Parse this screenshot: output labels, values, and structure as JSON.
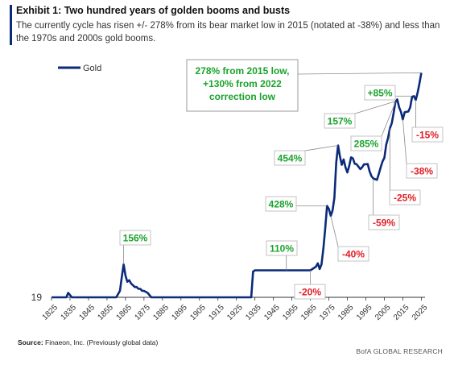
{
  "header": {
    "title": "Exhibit 1: Two hundred years of golden booms and busts",
    "subtitle": "The currently cycle has risen +/- 278% from its bear market low in 2015 (notated at -38%) and less than the 1970s and 2000s gold booms."
  },
  "footer": {
    "source_label": "Source:",
    "source_text": "Finaeon, Inc. (Previously global data)",
    "credit": "BofA GLOBAL RESEARCH"
  },
  "colors": {
    "line": "#0b2a7a",
    "gain": "#1aa32c",
    "loss": "#e11d25",
    "box_border": "#9a9a9a",
    "axis": "#333333"
  },
  "chart_data": {
    "type": "line",
    "series": [
      {
        "name": "Gold",
        "x": [
          1825,
          1833,
          1834,
          1835,
          1836,
          1860,
          1862,
          1863,
          1864,
          1865,
          1866,
          1867,
          1868,
          1869,
          1870,
          1871,
          1872,
          1873,
          1874,
          1875,
          1877,
          1879,
          1933,
          1934,
          1935,
          1940,
          1945,
          1948,
          1950,
          1952,
          1955,
          1960,
          1965,
          1968,
          1969,
          1970,
          1971,
          1972,
          1973,
          1974,
          1975,
          1976,
          1977,
          1978,
          1979,
          1980,
          1981,
          1982,
          1983,
          1984,
          1985,
          1986,
          1987,
          1988,
          1989,
          1990,
          1991,
          1992,
          1993,
          1994,
          1995,
          1996,
          1997,
          1998,
          1999,
          2000,
          2001,
          2002,
          2003,
          2004,
          2005,
          2006,
          2007,
          2008,
          2009,
          2010,
          2011,
          2012,
          2013,
          2014,
          2015,
          2016,
          2017,
          2018,
          2019,
          2020,
          2021,
          2022,
          2023,
          2024,
          2025
        ],
        "values": [
          19,
          19,
          21,
          20,
          19,
          19,
          22,
          30,
          40,
          31,
          27,
          28,
          26,
          25,
          24,
          24,
          23,
          23,
          22,
          22,
          21,
          19,
          19,
          34,
          35,
          35,
          35,
          35,
          35,
          35,
          35,
          35,
          35,
          38,
          41,
          36,
          40,
          57,
          90,
          150,
          140,
          120,
          135,
          180,
          400,
          590,
          460,
          380,
          430,
          360,
          320,
          370,
          450,
          440,
          390,
          385,
          365,
          345,
          360,
          385,
          385,
          388,
          330,
          295,
          280,
          275,
          271,
          310,
          360,
          410,
          445,
          600,
          700,
          870,
          975,
          1230,
          1570,
          1670,
          1400,
          1260,
          1060,
          1250,
          1260,
          1270,
          1400,
          1770,
          1800,
          1650,
          1950,
          2400,
          3050
        ]
      }
    ],
    "ytick": "19",
    "xticks": [
      "1825",
      "1835",
      "1845",
      "1855",
      "1865",
      "1875",
      "1885",
      "1895",
      "1905",
      "1915",
      "1925",
      "1935",
      "1945",
      "1955",
      "1965",
      "1975",
      "1985",
      "1995",
      "2005",
      "2015",
      "2025"
    ],
    "xlim": [
      1825,
      2027
    ],
    "ylim_log": [
      19,
      3300
    ],
    "legend": {
      "label": "Gold",
      "position": "top-left"
    },
    "annotations": [
      {
        "text": "156%",
        "kind": "gain",
        "x": 1864,
        "y": 40
      },
      {
        "text": "110%",
        "kind": "gain",
        "x": 1952,
        "y": 35
      },
      {
        "text": "-20%",
        "kind": "loss",
        "x": 1965,
        "y": 35
      },
      {
        "text": "428%",
        "kind": "gain",
        "x": 1974,
        "y": 150
      },
      {
        "text": "-40%",
        "kind": "loss",
        "x": 1976,
        "y": 120
      },
      {
        "text": "454%",
        "kind": "gain",
        "x": 1980,
        "y": 590
      },
      {
        "text": "-59%",
        "kind": "loss",
        "x": 1999,
        "y": 275
      },
      {
        "text": "285%",
        "kind": "gain",
        "x": 2011,
        "y": 1570
      },
      {
        "text": "-25%",
        "kind": "loss",
        "x": 2008,
        "y": 870
      },
      {
        "text": "157%",
        "kind": "gain",
        "x": 2011,
        "y": 1600
      },
      {
        "text": "-38%",
        "kind": "loss",
        "x": 2015,
        "y": 1060
      },
      {
        "text": "+85%",
        "kind": "gain",
        "x": 2020,
        "y": 1800
      },
      {
        "text": "-15%",
        "kind": "loss",
        "x": 2022,
        "y": 1650
      }
    ],
    "callout": {
      "lines": [
        "278% from 2015 low,",
        "+130% from 2022",
        "correction low"
      ],
      "x": 2025,
      "y": 3050
    }
  }
}
